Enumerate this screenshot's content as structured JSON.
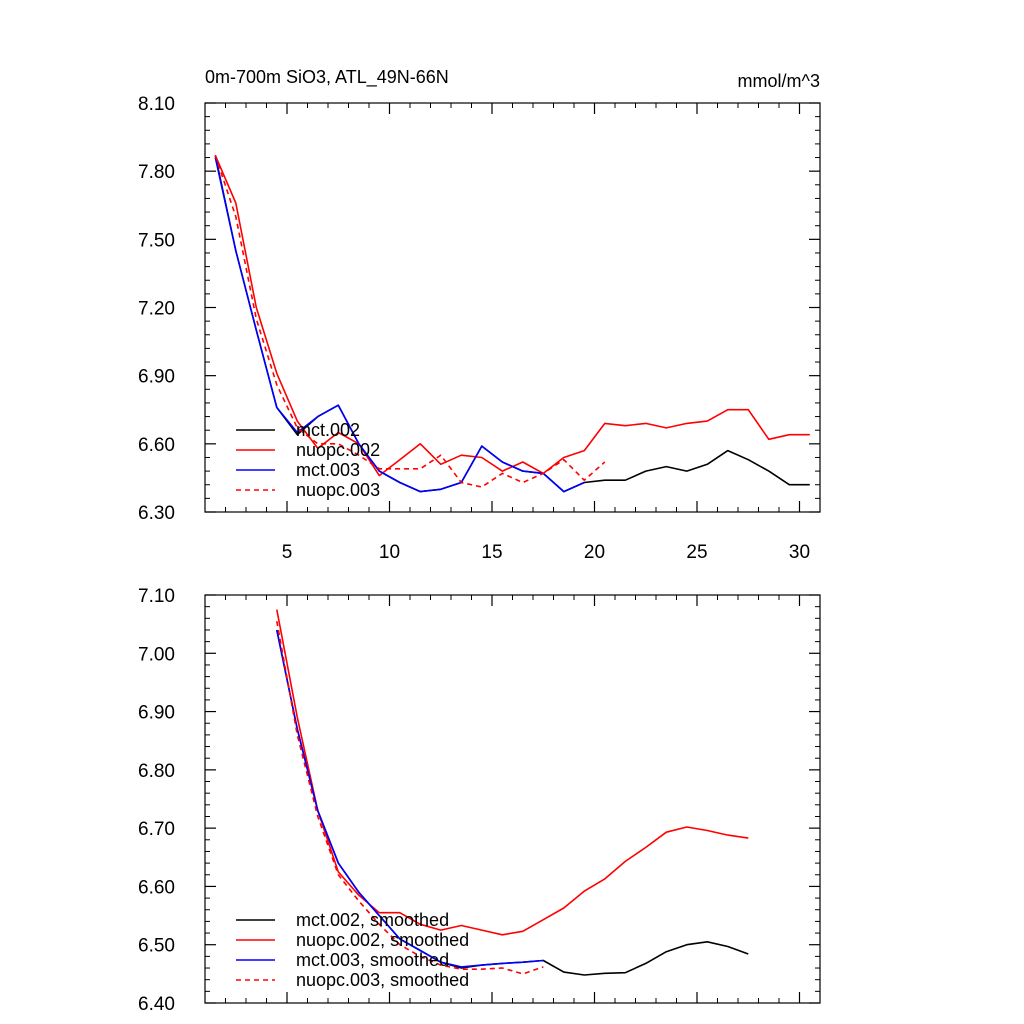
{
  "chart_data": [
    {
      "type": "line",
      "title": "0m-700m SiO3, ATL_49N-66N",
      "units": "mmol/m^3",
      "xlim": [
        1,
        31
      ],
      "ylim": [
        6.3,
        8.1
      ],
      "xticks": [
        5,
        10,
        15,
        20,
        25,
        30
      ],
      "xtick_labels": [
        "5",
        "10",
        "15",
        "20",
        "25",
        "30"
      ],
      "yticks": [
        6.3,
        6.6,
        6.9,
        7.2,
        7.5,
        7.8,
        8.1
      ],
      "ytick_labels": [
        "6.30",
        "6.60",
        "6.90",
        "7.20",
        "7.50",
        "7.80",
        "8.10"
      ],
      "legend_position": "bottom-left",
      "series": [
        {
          "name": "mct.002",
          "color": "#000000",
          "dash": "solid",
          "x": [
            1.5,
            2.5,
            3.5,
            4.5,
            5.5,
            6.5,
            7.5,
            8.5,
            9.5,
            10.5,
            11.5,
            12.5,
            13.5,
            14.5,
            15.5,
            16.5,
            17.5,
            18.5,
            19.5,
            20.5,
            21.5,
            22.5,
            23.5,
            24.5,
            25.5,
            26.5,
            27.5,
            28.5,
            29.5,
            30.5
          ],
          "values": [
            7.87,
            7.45,
            7.1,
            6.76,
            6.64,
            6.72,
            6.77,
            6.6,
            6.48,
            6.43,
            6.39,
            6.4,
            6.43,
            6.59,
            6.52,
            6.48,
            6.47,
            6.39,
            6.43,
            6.44,
            6.44,
            6.48,
            6.5,
            6.48,
            6.51,
            6.57,
            6.53,
            6.48,
            6.42,
            6.42
          ]
        },
        {
          "name": "nuopc.002",
          "color": "#ff0000",
          "dash": "solid",
          "x": [
            1.5,
            2.5,
            3.5,
            4.5,
            5.5,
            6.5,
            7.5,
            8.5,
            9.5,
            10.5,
            11.5,
            12.5,
            13.5,
            14.5,
            15.5,
            16.5,
            17.5,
            18.5,
            19.5,
            20.5,
            21.5,
            22.5,
            23.5,
            24.5,
            25.5,
            26.5,
            27.5,
            28.5,
            29.5,
            30.5
          ],
          "values": [
            7.87,
            7.66,
            7.2,
            6.91,
            6.7,
            6.58,
            6.65,
            6.6,
            6.46,
            6.53,
            6.6,
            6.51,
            6.55,
            6.54,
            6.48,
            6.52,
            6.47,
            6.54,
            6.57,
            6.69,
            6.68,
            6.69,
            6.67,
            6.69,
            6.7,
            6.75,
            6.75,
            6.62,
            6.64,
            6.64
          ]
        },
        {
          "name": "mct.003",
          "color": "#0000ff",
          "dash": "solid",
          "x": [
            1.5,
            2.5,
            3.5,
            4.5,
            5.5,
            6.5,
            7.5,
            8.5,
            9.5,
            10.5,
            11.5,
            12.5,
            13.5,
            14.5,
            15.5,
            16.5,
            17.5,
            18.5,
            19.5
          ],
          "values": [
            7.86,
            7.45,
            7.1,
            6.76,
            6.65,
            6.72,
            6.77,
            6.6,
            6.48,
            6.43,
            6.39,
            6.4,
            6.43,
            6.59,
            6.52,
            6.48,
            6.47,
            6.39,
            6.43
          ]
        },
        {
          "name": "nuopc.003",
          "color": "#ff0000",
          "dash": "dashed",
          "x": [
            1.5,
            2.5,
            3.5,
            4.5,
            5.5,
            6.5,
            7.5,
            8.5,
            9.5,
            10.5,
            11.5,
            12.5,
            13.5,
            14.5,
            15.5,
            16.5,
            17.5,
            18.5,
            19.5,
            20.5
          ],
          "values": [
            7.87,
            7.6,
            7.15,
            6.86,
            6.67,
            6.6,
            6.6,
            6.55,
            6.49,
            6.49,
            6.49,
            6.55,
            6.43,
            6.41,
            6.47,
            6.43,
            6.47,
            6.53,
            6.44,
            6.52
          ]
        }
      ]
    },
    {
      "type": "line",
      "xlim": [
        1,
        31
      ],
      "ylim": [
        6.4,
        7.1
      ],
      "xticks": [
        5,
        10,
        15,
        20,
        25,
        30
      ],
      "yticks": [
        6.4,
        6.5,
        6.6,
        6.7,
        6.8,
        6.9,
        7.0,
        7.1
      ],
      "ytick_labels": [
        "6.40",
        "6.50",
        "6.60",
        "6.70",
        "6.80",
        "6.90",
        "7.00",
        "7.10"
      ],
      "legend_position": "bottom-left",
      "series": [
        {
          "name": "mct.002, smoothed",
          "color": "#000000",
          "dash": "solid",
          "x": [
            4.5,
            5.5,
            6.5,
            7.5,
            8.5,
            9.5,
            10.5,
            11.5,
            12.5,
            13.5,
            14.5,
            15.5,
            16.5,
            17.5,
            18.5,
            19.5,
            20.5,
            21.5,
            22.5,
            23.5,
            24.5,
            25.5,
            26.5,
            27.5
          ],
          "values": [
            7.04,
            6.87,
            6.73,
            6.64,
            6.59,
            6.55,
            6.51,
            6.49,
            6.47,
            6.46,
            6.465,
            6.468,
            6.47,
            6.473,
            6.453,
            6.448,
            6.451,
            6.452,
            6.468,
            6.488,
            6.5,
            6.505,
            6.497,
            6.484
          ]
        },
        {
          "name": "nuopc.002, smoothed",
          "color": "#ff0000",
          "dash": "solid",
          "x": [
            4.5,
            5.5,
            6.5,
            7.5,
            8.5,
            9.5,
            10.5,
            11.5,
            12.5,
            13.5,
            14.5,
            15.5,
            16.5,
            17.5,
            18.5,
            19.5,
            20.5,
            21.5,
            22.5,
            23.5,
            24.5,
            25.5,
            26.5,
            27.5
          ],
          "values": [
            7.075,
            6.89,
            6.73,
            6.625,
            6.585,
            6.555,
            6.555,
            6.535,
            6.525,
            6.533,
            6.525,
            6.517,
            6.523,
            6.543,
            6.563,
            6.592,
            6.613,
            6.643,
            6.667,
            6.693,
            6.702,
            6.696,
            6.688,
            6.683
          ]
        },
        {
          "name": "mct.003, smoothed",
          "color": "#0000ff",
          "dash": "solid",
          "x": [
            4.5,
            5.5,
            6.5,
            7.5,
            8.5,
            9.5,
            10.5,
            11.5,
            12.5,
            13.5,
            14.5,
            15.5,
            16.5,
            17.5
          ],
          "values": [
            7.04,
            6.87,
            6.73,
            6.64,
            6.59,
            6.55,
            6.51,
            6.49,
            6.47,
            6.462,
            6.465,
            6.468,
            6.47,
            6.473
          ]
        },
        {
          "name": "nuopc.003, smoothed",
          "color": "#ff0000",
          "dash": "dashed",
          "x": [
            4.5,
            5.5,
            6.5,
            7.5,
            8.5,
            9.5,
            10.5,
            11.5,
            12.5,
            13.5,
            14.5,
            15.5,
            16.5,
            17.5
          ],
          "values": [
            7.055,
            6.86,
            6.72,
            6.62,
            6.575,
            6.535,
            6.5,
            6.48,
            6.465,
            6.458,
            6.458,
            6.46,
            6.45,
            6.462
          ]
        }
      ]
    }
  ]
}
